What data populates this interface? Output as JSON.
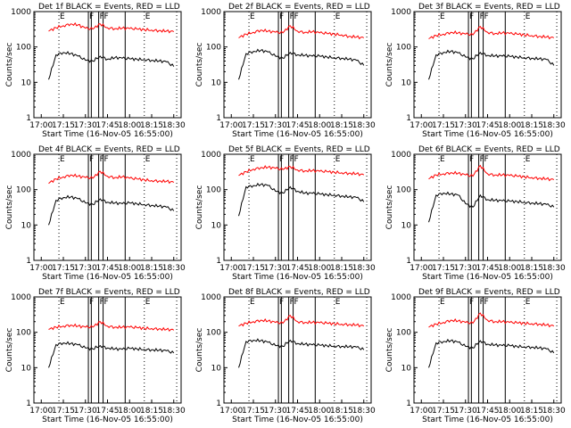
{
  "window": {
    "title": ""
  },
  "shared": {
    "xtick_labels": [
      "17:00",
      "17:15",
      "17:30",
      "17:45",
      "18:00",
      "18:15",
      "18:30"
    ],
    "ytick_labels": [
      "1",
      "10",
      "100",
      "1000"
    ],
    "ylabel": "Counts/sec",
    "xlabel": "Start Time (16-Nov-05 16:55:00)",
    "marker_labels": [
      "E",
      "F",
      "F",
      "F",
      "E"
    ],
    "colors": {
      "events": "#000000",
      "lld": "#ff0000",
      "dotted": "#000000"
    }
  },
  "chart_data": [
    {
      "type": "line",
      "title": "Det 1f BLACK = Events, RED = LLD",
      "xlabel": "Start Time (16-Nov-05 16:55:00)",
      "ylabel": "Counts/sec",
      "xlim": [
        "16:55",
        "18:35"
      ],
      "ylim": [
        1,
        1000
      ],
      "yscale": "log",
      "x": [
        "17:05",
        "17:10",
        "17:15",
        "17:20",
        "17:25",
        "17:30",
        "17:35",
        "17:40",
        "17:45",
        "17:50",
        "17:55",
        "18:00",
        "18:05",
        "18:10",
        "18:15",
        "18:20",
        "18:25",
        "18:30"
      ],
      "series": [
        {
          "name": "Events",
          "values": [
            12,
            60,
            70,
            65,
            55,
            42,
            40,
            55,
            45,
            50,
            48,
            46,
            45,
            44,
            42,
            40,
            38,
            28
          ]
        },
        {
          "name": "LLD",
          "values": [
            280,
            350,
            400,
            450,
            420,
            340,
            320,
            450,
            350,
            330,
            340,
            330,
            320,
            310,
            300,
            290,
            280,
            270
          ]
        }
      ]
    },
    {
      "type": "line",
      "title": "Det 2f BLACK = Events, RED = LLD",
      "xlabel": "Start Time (16-Nov-05 16:55:00)",
      "ylabel": "Counts/sec",
      "xlim": [
        "16:55",
        "18:35"
      ],
      "ylim": [
        1,
        1000
      ],
      "yscale": "log",
      "x": [
        "17:05",
        "17:10",
        "17:15",
        "17:20",
        "17:25",
        "17:30",
        "17:35",
        "17:40",
        "17:45",
        "17:50",
        "17:55",
        "18:00",
        "18:05",
        "18:10",
        "18:15",
        "18:20",
        "18:25",
        "18:30"
      ],
      "series": [
        {
          "name": "Events",
          "values": [
            12,
            65,
            75,
            80,
            72,
            55,
            48,
            70,
            60,
            58,
            55,
            55,
            52,
            50,
            48,
            45,
            42,
            30
          ]
        },
        {
          "name": "LLD",
          "values": [
            180,
            230,
            260,
            300,
            280,
            260,
            250,
            400,
            280,
            260,
            270,
            250,
            240,
            230,
            220,
            200,
            190,
            180
          ]
        }
      ]
    },
    {
      "type": "line",
      "title": "Det 3f BLACK = Events, RED = LLD",
      "xlabel": "Start Time (16-Nov-05 16:55:00)",
      "ylabel": "Counts/sec",
      "xlim": [
        "16:55",
        "18:35"
      ],
      "ylim": [
        1,
        1000
      ],
      "yscale": "log",
      "x": [
        "17:05",
        "17:10",
        "17:15",
        "17:20",
        "17:25",
        "17:30",
        "17:35",
        "17:40",
        "17:45",
        "17:50",
        "17:55",
        "18:00",
        "18:05",
        "18:10",
        "18:15",
        "18:20",
        "18:25",
        "18:30"
      ],
      "series": [
        {
          "name": "Events",
          "values": [
            12,
            60,
            70,
            75,
            68,
            52,
            46,
            70,
            58,
            56,
            55,
            54,
            52,
            50,
            48,
            46,
            44,
            30
          ]
        },
        {
          "name": "LLD",
          "values": [
            170,
            210,
            230,
            260,
            250,
            230,
            220,
            380,
            260,
            240,
            250,
            240,
            230,
            220,
            210,
            200,
            190,
            180
          ]
        }
      ]
    },
    {
      "type": "line",
      "title": "Det 4f BLACK = Events, RED = LLD",
      "xlabel": "Start Time (16-Nov-05 16:55:00)",
      "ylabel": "Counts/sec",
      "xlim": [
        "16:55",
        "18:35"
      ],
      "ylim": [
        1,
        1000
      ],
      "yscale": "log",
      "x": [
        "17:05",
        "17:10",
        "17:15",
        "17:20",
        "17:25",
        "17:30",
        "17:35",
        "17:40",
        "17:45",
        "17:50",
        "17:55",
        "18:00",
        "18:05",
        "18:10",
        "18:15",
        "18:20",
        "18:25",
        "18:30"
      ],
      "series": [
        {
          "name": "Events",
          "values": [
            10,
            50,
            60,
            62,
            55,
            42,
            38,
            55,
            44,
            42,
            40,
            42,
            40,
            38,
            36,
            34,
            32,
            25
          ]
        },
        {
          "name": "LLD",
          "values": [
            150,
            200,
            230,
            260,
            240,
            220,
            210,
            330,
            240,
            220,
            230,
            210,
            200,
            190,
            180,
            175,
            170,
            160
          ]
        }
      ]
    },
    {
      "type": "line",
      "title": "Det 5f BLACK = Events, RED = LLD",
      "xlabel": "Start Time (16-Nov-05 16:55:00)",
      "ylabel": "Counts/sec",
      "xlim": [
        "16:55",
        "18:35"
      ],
      "ylim": [
        1,
        1000
      ],
      "yscale": "log",
      "x": [
        "17:05",
        "17:10",
        "17:15",
        "17:20",
        "17:25",
        "17:30",
        "17:35",
        "17:40",
        "17:45",
        "17:50",
        "17:55",
        "18:00",
        "18:05",
        "18:10",
        "18:15",
        "18:20",
        "18:25",
        "18:30"
      ],
      "series": [
        {
          "name": "Events",
          "values": [
            18,
            120,
            130,
            140,
            130,
            90,
            80,
            120,
            90,
            80,
            78,
            75,
            72,
            70,
            66,
            62,
            60,
            45
          ]
        },
        {
          "name": "LLD",
          "values": [
            250,
            320,
            380,
            420,
            430,
            400,
            370,
            450,
            360,
            340,
            345,
            330,
            320,
            310,
            300,
            290,
            280,
            260
          ]
        }
      ]
    },
    {
      "type": "line",
      "title": "Det 6f BLACK = Events, RED = LLD",
      "xlabel": "Start Time (16-Nov-05 16:55:00)",
      "ylabel": "Counts/sec",
      "xlim": [
        "16:55",
        "18:35"
      ],
      "ylim": [
        1,
        1000
      ],
      "yscale": "log",
      "x": [
        "17:05",
        "17:10",
        "17:15",
        "17:20",
        "17:25",
        "17:30",
        "17:35",
        "17:40",
        "17:45",
        "17:50",
        "17:55",
        "18:00",
        "18:05",
        "18:10",
        "18:15",
        "18:20",
        "18:25",
        "18:30"
      ],
      "series": [
        {
          "name": "Events",
          "values": [
            12,
            70,
            80,
            75,
            70,
            40,
            32,
            70,
            52,
            50,
            48,
            47,
            46,
            44,
            42,
            40,
            38,
            32
          ]
        },
        {
          "name": "LLD",
          "values": [
            200,
            260,
            280,
            300,
            290,
            260,
            240,
            480,
            280,
            260,
            260,
            250,
            240,
            230,
            220,
            210,
            200,
            190
          ]
        }
      ]
    },
    {
      "type": "line",
      "title": "Det 7f BLACK = Events, RED = LLD",
      "xlabel": "Start Time (16-Nov-05 16:55:00)",
      "ylabel": "Counts/sec",
      "xlim": [
        "16:55",
        "18:35"
      ],
      "ylim": [
        1,
        1000
      ],
      "yscale": "log",
      "x": [
        "17:05",
        "17:10",
        "17:15",
        "17:20",
        "17:25",
        "17:30",
        "17:35",
        "17:40",
        "17:45",
        "17:50",
        "17:55",
        "18:00",
        "18:05",
        "18:10",
        "18:15",
        "18:20",
        "18:25",
        "18:30"
      ],
      "series": [
        {
          "name": "Events",
          "values": [
            10,
            45,
            50,
            48,
            44,
            36,
            34,
            42,
            36,
            34,
            33,
            35,
            34,
            33,
            32,
            31,
            30,
            26
          ]
        },
        {
          "name": "LLD",
          "values": [
            120,
            140,
            150,
            160,
            150,
            140,
            140,
            200,
            150,
            140,
            140,
            140,
            135,
            130,
            128,
            125,
            120,
            115
          ]
        }
      ]
    },
    {
      "type": "line",
      "title": "Det 8f BLACK = Events, RED = LLD",
      "xlabel": "Start Time (16-Nov-05 16:55:00)",
      "ylabel": "Counts/sec",
      "xlim": [
        "16:55",
        "18:35"
      ],
      "ylim": [
        1,
        1000
      ],
      "yscale": "log",
      "x": [
        "17:05",
        "17:10",
        "17:15",
        "17:20",
        "17:25",
        "17:30",
        "17:35",
        "17:40",
        "17:45",
        "17:50",
        "17:55",
        "18:00",
        "18:05",
        "18:10",
        "18:15",
        "18:20",
        "18:25",
        "18:30"
      ],
      "series": [
        {
          "name": "Events",
          "values": [
            10,
            55,
            60,
            58,
            52,
            42,
            40,
            60,
            48,
            46,
            44,
            43,
            42,
            41,
            40,
            39,
            38,
            32
          ]
        },
        {
          "name": "LLD",
          "values": [
            150,
            180,
            200,
            220,
            210,
            190,
            180,
            300,
            200,
            190,
            190,
            185,
            180,
            175,
            170,
            165,
            160,
            150
          ]
        }
      ]
    },
    {
      "type": "line",
      "title": "Det 9f BLACK = Events, RED = LLD",
      "xlabel": "Start Time (16-Nov-05 16:55:00)",
      "ylabel": "Counts/sec",
      "xlim": [
        "16:55",
        "18:35"
      ],
      "ylim": [
        1,
        1000
      ],
      "yscale": "log",
      "x": [
        "17:05",
        "17:10",
        "17:15",
        "17:20",
        "17:25",
        "17:30",
        "17:35",
        "17:40",
        "17:45",
        "17:50",
        "17:55",
        "18:00",
        "18:05",
        "18:10",
        "18:15",
        "18:20",
        "18:25",
        "18:30"
      ],
      "series": [
        {
          "name": "Events",
          "values": [
            10,
            50,
            55,
            58,
            52,
            40,
            36,
            58,
            46,
            44,
            42,
            42,
            40,
            39,
            38,
            36,
            34,
            26
          ]
        },
        {
          "name": "LLD",
          "values": [
            140,
            170,
            190,
            220,
            210,
            190,
            180,
            350,
            220,
            200,
            200,
            190,
            185,
            180,
            175,
            170,
            160,
            150
          ]
        }
      ]
    }
  ]
}
